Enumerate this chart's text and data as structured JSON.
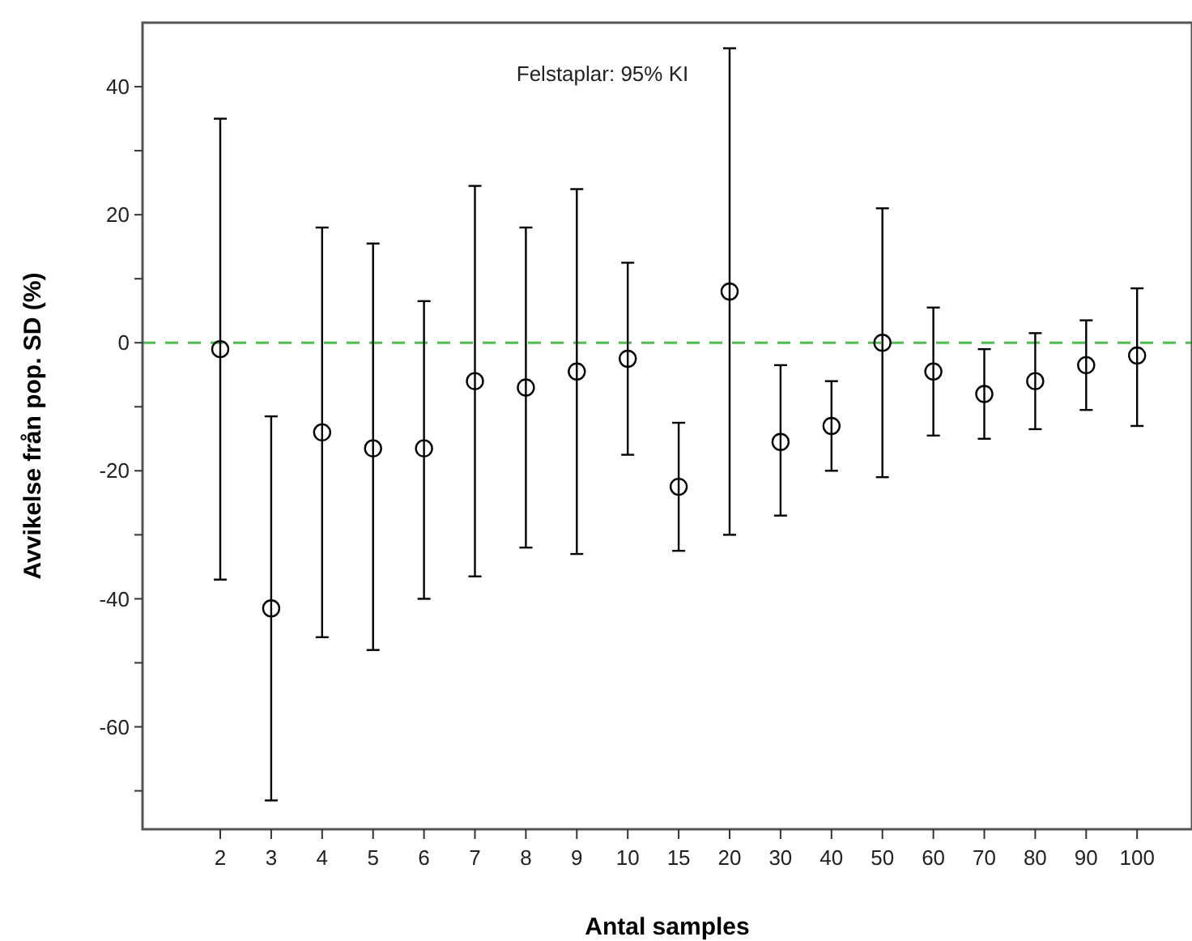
{
  "chart_data": {
    "type": "scatter",
    "xlabel": "Antal samples",
    "ylabel": "Avvikelse från pop. SD (%)",
    "categories": [
      "2",
      "3",
      "4",
      "5",
      "6",
      "7",
      "8",
      "9",
      "10",
      "15",
      "20",
      "30",
      "40",
      "50",
      "60",
      "70",
      "80",
      "90",
      "100"
    ],
    "series": [
      {
        "color": "#000000",
        "values": [
          -1,
          -41.5,
          -14,
          -16.5,
          -16.5,
          -6,
          -7,
          -4.5,
          -2.5,
          -22.5,
          8,
          -15.5,
          -13,
          0,
          -4.5,
          -8,
          -6,
          -3.5,
          -2
        ],
        "errors": [
          [
            -37,
            35
          ],
          [
            -71.5,
            -11.5
          ],
          [
            -46,
            18
          ],
          [
            -48,
            15.5
          ],
          [
            -40,
            6.5
          ],
          [
            -36.5,
            24.5
          ],
          [
            -32,
            18
          ],
          [
            -33,
            24
          ],
          [
            -17.5,
            12.5
          ],
          [
            -32.5,
            -12.5
          ],
          [
            -30,
            46
          ],
          [
            -27,
            -3.5
          ],
          [
            -20,
            -6
          ],
          [
            -21,
            21
          ],
          [
            -14.5,
            5.5
          ],
          [
            -15,
            -1
          ],
          [
            -13.5,
            1.5
          ],
          [
            -10.5,
            3.5
          ],
          [
            -13,
            8.5
          ]
        ]
      }
    ],
    "ylim": [
      -76,
      50
    ],
    "yticks": [
      {
        "value": -70,
        "label": null
      },
      -60,
      {
        "value": -50,
        "label": null
      },
      -40,
      {
        "value": -30,
        "label": null
      },
      -20,
      {
        "value": -10,
        "label": null
      },
      0,
      {
        "value": 10,
        "label": null
      },
      20,
      {
        "value": 30,
        "label": null
      },
      40
    ],
    "ref_lines": [
      {
        "axis": "y",
        "value": 0,
        "color": "#4dbf4d",
        "line_style": "dashed"
      }
    ],
    "annotations": [
      "Felstaplar: 95% KI"
    ],
    "marker": "circle",
    "grid": false
  }
}
